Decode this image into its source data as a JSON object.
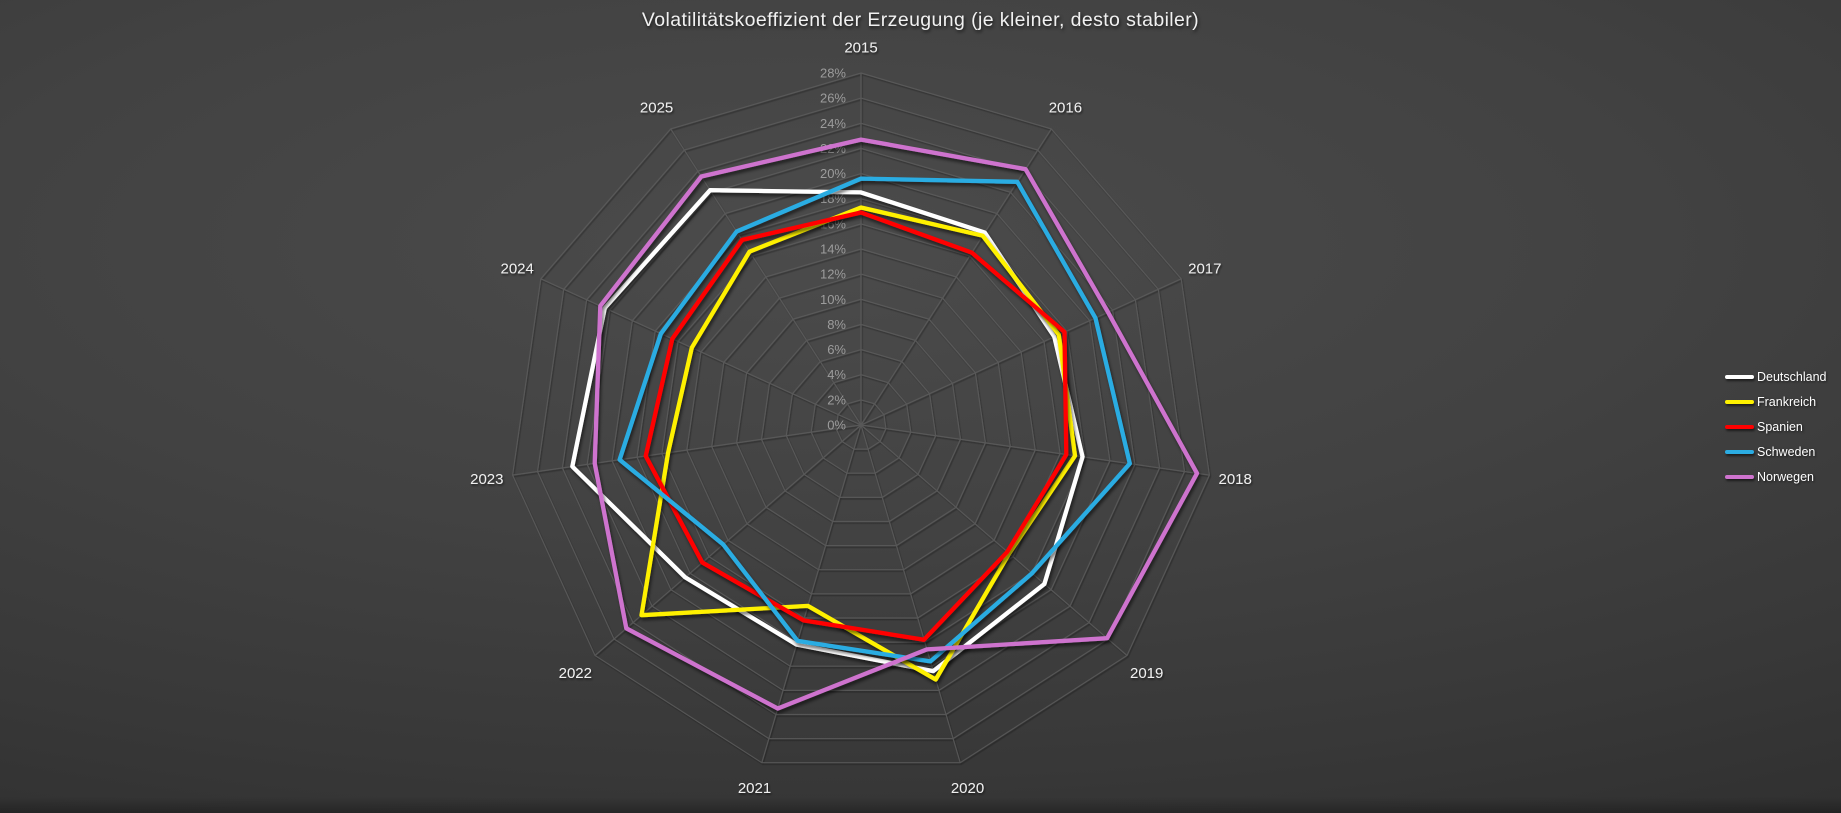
{
  "title": "Volatilitätskoeffizient der Erzeugung (je kleiner, desto stabiler)",
  "legend": [
    {
      "label": "Deutschland",
      "color": "#ffffff"
    },
    {
      "label": "Frankreich",
      "color": "#fff100"
    },
    {
      "label": "Spanien",
      "color": "#ff0000"
    },
    {
      "label": "Schweden",
      "color": "#2bace2"
    },
    {
      "label": "Norwegen",
      "color": "#ce73ce"
    }
  ],
  "chart_data": {
    "type": "radar",
    "title": "Volatilitätskoeffizient der Erzeugung (je kleiner, desto stabiler)",
    "categories": [
      "2015",
      "2016",
      "2017",
      "2018",
      "2019",
      "2020",
      "2021",
      "2022",
      "2023",
      "2024",
      "2025"
    ],
    "series": [
      {
        "name": "Deutschland",
        "color": "#ffffff",
        "values": [
          18.5,
          18.2,
          16.9,
          17.8,
          19.3,
          20.4,
          18.2,
          18.5,
          23.2,
          22.4,
          22.2
        ]
      },
      {
        "name": "Frankreich",
        "color": "#fff100",
        "values": [
          17.3,
          17.9,
          17.3,
          17.2,
          15.6,
          21.1,
          15.0,
          23.1,
          15.5,
          14.8,
          16.4
        ]
      },
      {
        "name": "Spanien",
        "color": "#ff0000",
        "values": [
          16.9,
          16.3,
          17.8,
          16.5,
          15.4,
          17.8,
          16.2,
          16.7,
          17.3,
          16.5,
          17.5
        ]
      },
      {
        "name": "Schweden",
        "color": "#2bace2",
        "values": [
          19.6,
          23.0,
          20.5,
          21.6,
          18.0,
          19.6,
          17.9,
          14.5,
          19.4,
          17.5,
          18.3
        ]
      },
      {
        "name": "Norwegen",
        "color": "#ce73ce",
        "values": [
          22.7,
          24.2,
          21.6,
          27.0,
          25.9,
          18.6,
          23.5,
          24.7,
          21.4,
          22.8,
          23.5
        ]
      }
    ],
    "radial_axis": {
      "min": 0,
      "max": 28,
      "step": 2,
      "unit": "%"
    },
    "radial_ticks": [
      "0%",
      "2%",
      "4%",
      "6%",
      "8%",
      "10%",
      "12%",
      "14%",
      "16%",
      "18%",
      "20%",
      "22%",
      "24%",
      "26%",
      "28%"
    ],
    "grid": true,
    "grid_color": "#5d5d5d",
    "tick_label_color": "#9c9c9c",
    "category_label_color": "#efefef",
    "legend_position": "right"
  }
}
